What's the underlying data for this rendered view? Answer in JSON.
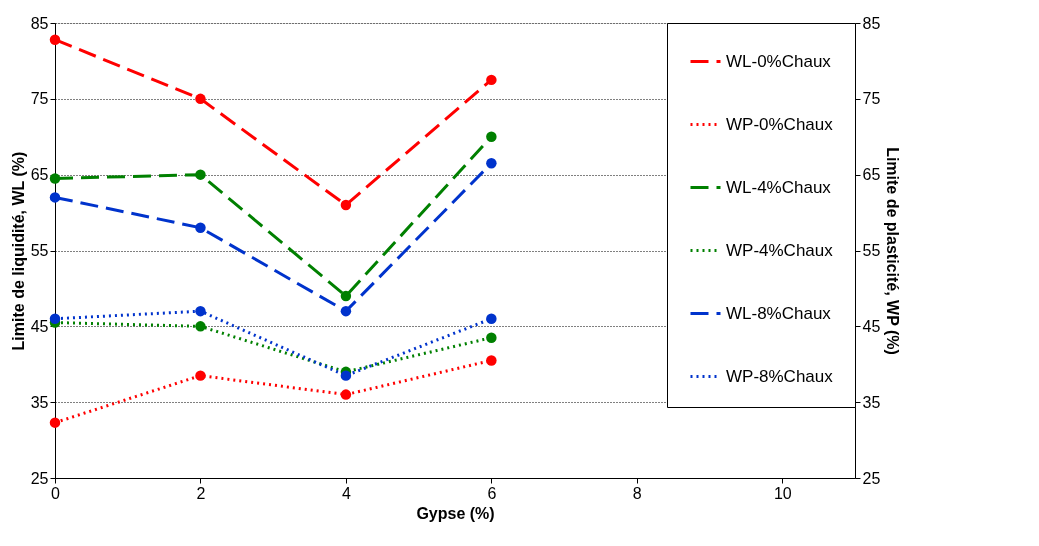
{
  "chart_data": {
    "type": "line",
    "xlabel": "Gypse (%)",
    "ylabel": "Limite de liquidité, WL (%)",
    "y2label": "Limite de plasticité, WP (%)",
    "x": [
      0,
      2,
      4,
      6
    ],
    "xlim": [
      0,
      11
    ],
    "xticks": [
      0,
      2,
      4,
      6,
      8,
      10
    ],
    "ylim": [
      25,
      85
    ],
    "yticks": [
      25,
      35,
      45,
      55,
      65,
      75,
      85
    ],
    "y2lim": [
      25,
      85
    ],
    "y2ticks": [
      25,
      35,
      45,
      55,
      65,
      75,
      85
    ],
    "grid": "y",
    "legend": "top right",
    "marker": "circle",
    "series": [
      {
        "name": "WL-0%Chaux",
        "color": "#ff0000",
        "line_style": "dashed",
        "values": [
          82.8,
          75,
          61,
          77.5
        ]
      },
      {
        "name": "WP-0%Chaux",
        "color": "#ff0000",
        "line_style": "dotted",
        "axis": "y2",
        "values": [
          32.3,
          38.5,
          36,
          40.5
        ]
      },
      {
        "name": "WL-4%Chaux",
        "color": "#008000",
        "line_style": "dashed",
        "values": [
          64.5,
          65,
          49,
          70
        ]
      },
      {
        "name": "WP-4%Chaux",
        "color": "#008000",
        "line_style": "dotted",
        "axis": "y2",
        "values": [
          45.5,
          45,
          39,
          43.5
        ]
      },
      {
        "name": "WL-8%Chaux",
        "color": "#0033cc",
        "line_style": "dashed",
        "values": [
          62,
          58,
          47,
          66.5
        ]
      },
      {
        "name": "WP-8%Chaux",
        "color": "#0033cc",
        "line_style": "dotted",
        "axis": "y2",
        "values": [
          46,
          47,
          38.5,
          46
        ]
      }
    ]
  }
}
